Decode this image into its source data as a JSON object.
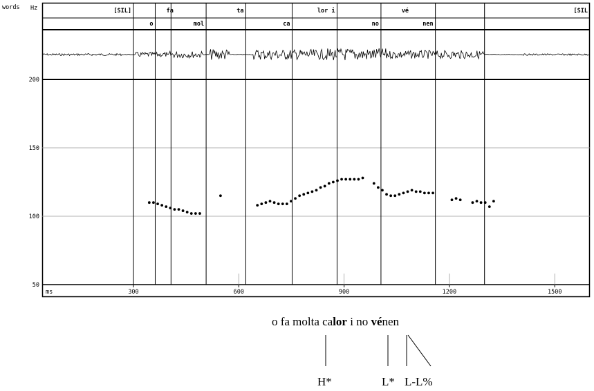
{
  "chart_data": {
    "type": "scatter",
    "axis_units": {
      "words": "words",
      "hz": "Hz",
      "ms": "ms"
    },
    "y_ticks": [
      50,
      100,
      150,
      200
    ],
    "x_ticks": [
      300,
      600,
      900,
      1200,
      1500
    ],
    "ylim": [
      50,
      200
    ],
    "xlim": [
      40,
      1600
    ],
    "grid": true,
    "tiers": {
      "words": [
        {
          "label": "[SIL]",
          "end": 300
        },
        {
          "label": "fa",
          "end": 420
        },
        {
          "label": "ta",
          "end": 620
        },
        {
          "label": "lor i",
          "end": 880
        },
        {
          "label": "vé",
          "end": 1090
        },
        {
          "label": "[SIL",
          "end": 1600
        }
      ],
      "syllables": [
        {
          "label": "o",
          "end": 362
        },
        {
          "label": "mol",
          "end": 507
        },
        {
          "label": "ca",
          "end": 752
        },
        {
          "label": "no",
          "end": 1005
        },
        {
          "label": "nen",
          "end": 1160
        }
      ]
    },
    "boundaries_ms": [
      300,
      362,
      407,
      507,
      620,
      752,
      880,
      1005,
      1160,
      1300
    ],
    "f0_points": [
      [
        345,
        110
      ],
      [
        357,
        110
      ],
      [
        369,
        109
      ],
      [
        381,
        108
      ],
      [
        393,
        107
      ],
      [
        405,
        106
      ],
      [
        417,
        105
      ],
      [
        429,
        105
      ],
      [
        441,
        104
      ],
      [
        453,
        103
      ],
      [
        465,
        102
      ],
      [
        477,
        102
      ],
      [
        489,
        102
      ],
      [
        548,
        115
      ],
      [
        653,
        108
      ],
      [
        665,
        109
      ],
      [
        677,
        110
      ],
      [
        689,
        111
      ],
      [
        701,
        110
      ],
      [
        713,
        109
      ],
      [
        725,
        109
      ],
      [
        737,
        109
      ],
      [
        749,
        111
      ],
      [
        761,
        113
      ],
      [
        773,
        115
      ],
      [
        785,
        116
      ],
      [
        797,
        117
      ],
      [
        809,
        118
      ],
      [
        821,
        119
      ],
      [
        833,
        121
      ],
      [
        845,
        122
      ],
      [
        857,
        124
      ],
      [
        869,
        125
      ],
      [
        881,
        126
      ],
      [
        893,
        127
      ],
      [
        905,
        127
      ],
      [
        917,
        127
      ],
      [
        929,
        127
      ],
      [
        941,
        127
      ],
      [
        953,
        128
      ],
      [
        985,
        124
      ],
      [
        997,
        121
      ],
      [
        1009,
        119
      ],
      [
        1021,
        116
      ],
      [
        1033,
        115
      ],
      [
        1045,
        115
      ],
      [
        1057,
        116
      ],
      [
        1069,
        117
      ],
      [
        1081,
        118
      ],
      [
        1093,
        119
      ],
      [
        1105,
        118
      ],
      [
        1117,
        118
      ],
      [
        1129,
        117
      ],
      [
        1141,
        117
      ],
      [
        1153,
        117
      ],
      [
        1207,
        112
      ],
      [
        1219,
        113
      ],
      [
        1231,
        112
      ],
      [
        1266,
        110
      ],
      [
        1278,
        111
      ],
      [
        1290,
        110
      ],
      [
        1302,
        110
      ],
      [
        1314,
        107
      ],
      [
        1326,
        111
      ]
    ]
  },
  "caption": {
    "pre": "o fa molta ca",
    "bold1": "lor",
    "mid": " i no ",
    "bold2": "vé",
    "post": "nen"
  },
  "tones": {
    "h_star": "H*",
    "l_star": "L*",
    "boundary": "L-L%"
  }
}
